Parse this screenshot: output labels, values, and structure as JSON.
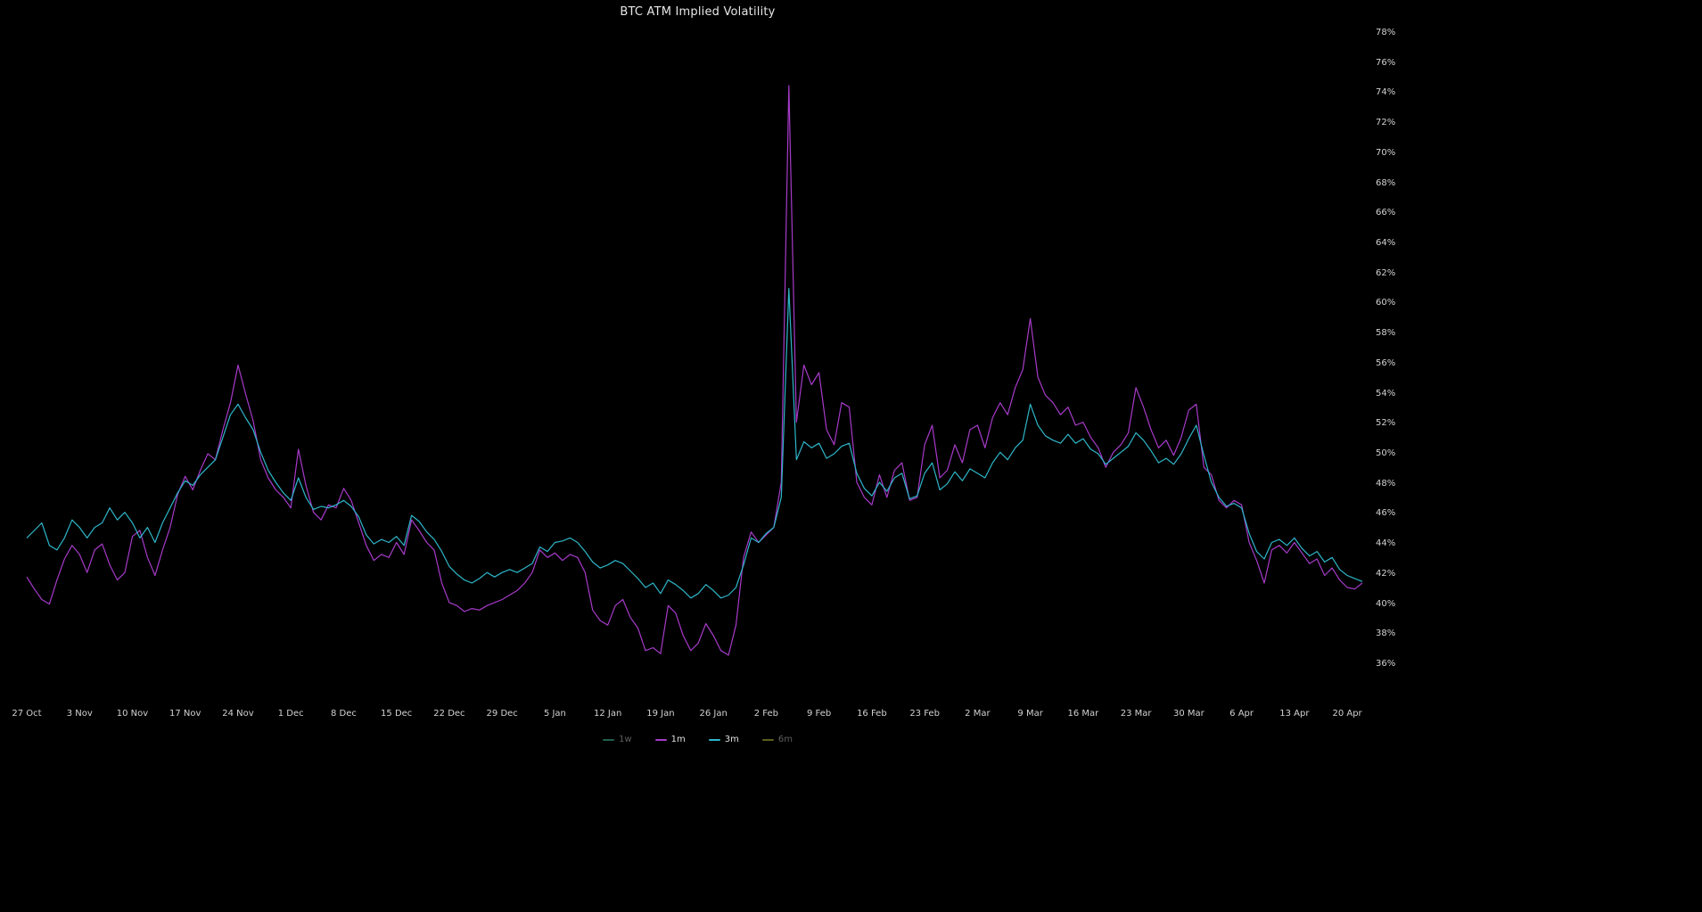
{
  "colors": {
    "background": "#000000",
    "title_text": "#e6e6e6",
    "axis_text": "#d2d2d2",
    "legend_active_text": "#e0e0e0",
    "legend_inactive_text": "#5f5f5f"
  },
  "chart_data": {
    "type": "line",
    "title": "BTC ATM Implied Volatility",
    "grid": false,
    "legend_position": "bottom-center",
    "y_unit": "%",
    "ylim": [
      36,
      78
    ],
    "y_ticks": [
      78,
      76,
      74,
      72,
      70,
      68,
      66,
      64,
      62,
      60,
      58,
      56,
      54,
      52,
      50,
      48,
      46,
      44,
      42,
      40,
      38,
      36
    ],
    "x_tick_interval_days": 7,
    "x_tick_labels": [
      "27 Oct",
      "3 Nov",
      "10 Nov",
      "17 Nov",
      "24 Nov",
      "1 Dec",
      "8 Dec",
      "15 Dec",
      "22 Dec",
      "29 Dec",
      "5 Jan",
      "12 Jan",
      "19 Jan",
      "26 Jan",
      "2 Feb",
      "9 Feb",
      "16 Feb",
      "23 Feb",
      "2 Mar",
      "9 Mar",
      "16 Mar",
      "23 Mar",
      "30 Mar",
      "6 Apr",
      "13 Apr",
      "20 Apr"
    ],
    "series": [
      {
        "name": "1w",
        "color": "#1f6150",
        "active": false,
        "values": []
      },
      {
        "name": "1m",
        "color": "#a73bc9",
        "active": true,
        "values": [
          41.8,
          41.0,
          40.3,
          40.0,
          41.6,
          43.0,
          43.9,
          43.3,
          42.1,
          43.6,
          44.0,
          42.6,
          41.6,
          42.1,
          44.5,
          44.9,
          43.1,
          41.9,
          43.6,
          45.1,
          47.3,
          48.5,
          47.6,
          48.9,
          50.0,
          49.6,
          51.6,
          53.4,
          55.9,
          54.0,
          52.2,
          49.6,
          48.4,
          47.6,
          47.1,
          46.4,
          50.3,
          47.9,
          46.1,
          45.6,
          46.6,
          46.4,
          47.7,
          46.9,
          45.4,
          43.9,
          42.9,
          43.3,
          43.1,
          44.1,
          43.3,
          45.6,
          44.9,
          44.1,
          43.6,
          41.4,
          40.1,
          39.9,
          39.5,
          39.7,
          39.6,
          39.9,
          40.1,
          40.3,
          40.6,
          40.9,
          41.4,
          42.1,
          43.6,
          43.1,
          43.4,
          42.9,
          43.3,
          43.1,
          42.1,
          39.6,
          38.9,
          38.6,
          39.9,
          40.3,
          39.1,
          38.4,
          36.9,
          37.1,
          36.7,
          39.9,
          39.4,
          37.9,
          36.9,
          37.4,
          38.7,
          37.9,
          36.9,
          36.6,
          38.6,
          43.1,
          44.8,
          44.1,
          44.6,
          45.1,
          48.1,
          74.5,
          52.1,
          55.9,
          54.6,
          55.4,
          51.6,
          50.6,
          53.4,
          53.1,
          48.1,
          47.1,
          46.6,
          48.6,
          47.1,
          48.9,
          49.4,
          46.9,
          47.1,
          50.6,
          51.9,
          48.4,
          48.9,
          50.6,
          49.4,
          51.6,
          51.9,
          50.4,
          52.4,
          53.4,
          52.6,
          54.4,
          55.6,
          59.0,
          55.1,
          53.9,
          53.4,
          52.6,
          53.1,
          51.9,
          52.1,
          51.1,
          50.4,
          49.1,
          50.1,
          50.6,
          51.4,
          54.4,
          53.1,
          51.6,
          50.4,
          50.9,
          49.9,
          51.1,
          52.9,
          53.3,
          49.1,
          48.6,
          46.9,
          46.4,
          46.9,
          46.6,
          44.1,
          42.9,
          41.4,
          43.6,
          43.9,
          43.4,
          44.1,
          43.4,
          42.7,
          43.0,
          41.9,
          42.4,
          41.6,
          41.1,
          41.0,
          41.4
        ]
      },
      {
        "name": "3m",
        "color": "#2eb6c9",
        "active": true,
        "values": [
          44.4,
          44.9,
          45.4,
          43.9,
          43.6,
          44.4,
          45.6,
          45.1,
          44.4,
          45.1,
          45.4,
          46.4,
          45.6,
          46.1,
          45.4,
          44.4,
          45.1,
          44.1,
          45.4,
          46.4,
          47.4,
          48.2,
          47.9,
          48.6,
          49.1,
          49.6,
          51.1,
          52.6,
          53.3,
          52.4,
          51.6,
          50.1,
          48.9,
          48.1,
          47.4,
          46.9,
          48.4,
          47.1,
          46.3,
          46.5,
          46.4,
          46.6,
          46.9,
          46.5,
          45.8,
          44.6,
          44.0,
          44.3,
          44.1,
          44.5,
          43.9,
          45.9,
          45.5,
          44.8,
          44.3,
          43.5,
          42.5,
          42.0,
          41.6,
          41.4,
          41.7,
          42.1,
          41.8,
          42.1,
          42.3,
          42.1,
          42.4,
          42.7,
          43.8,
          43.5,
          44.1,
          44.2,
          44.4,
          44.1,
          43.5,
          42.8,
          42.4,
          42.6,
          42.9,
          42.7,
          42.2,
          41.7,
          41.1,
          41.4,
          40.7,
          41.6,
          41.3,
          40.9,
          40.4,
          40.7,
          41.3,
          40.9,
          40.4,
          40.6,
          41.1,
          42.6,
          44.4,
          44.1,
          44.7,
          45.1,
          47.1,
          61.0,
          49.6,
          50.8,
          50.4,
          50.7,
          49.7,
          50.0,
          50.5,
          50.7,
          48.7,
          47.7,
          47.2,
          48.1,
          47.5,
          48.4,
          48.7,
          47.0,
          47.2,
          48.7,
          49.4,
          47.6,
          48.0,
          48.8,
          48.2,
          49.0,
          48.7,
          48.4,
          49.4,
          50.1,
          49.6,
          50.4,
          50.9,
          53.3,
          51.9,
          51.2,
          50.9,
          50.7,
          51.3,
          50.7,
          51.0,
          50.3,
          50.0,
          49.3,
          49.7,
          50.1,
          50.5,
          51.4,
          50.9,
          50.2,
          49.4,
          49.7,
          49.3,
          50.0,
          51.0,
          51.9,
          49.9,
          48.1,
          47.1,
          46.5,
          46.7,
          46.4,
          44.7,
          43.5,
          43.0,
          44.1,
          44.3,
          43.9,
          44.4,
          43.7,
          43.2,
          43.5,
          42.8,
          43.1,
          42.3,
          41.9,
          41.7,
          41.5
        ]
      },
      {
        "name": "6m",
        "color": "#5e6022",
        "active": false,
        "values": []
      }
    ]
  }
}
